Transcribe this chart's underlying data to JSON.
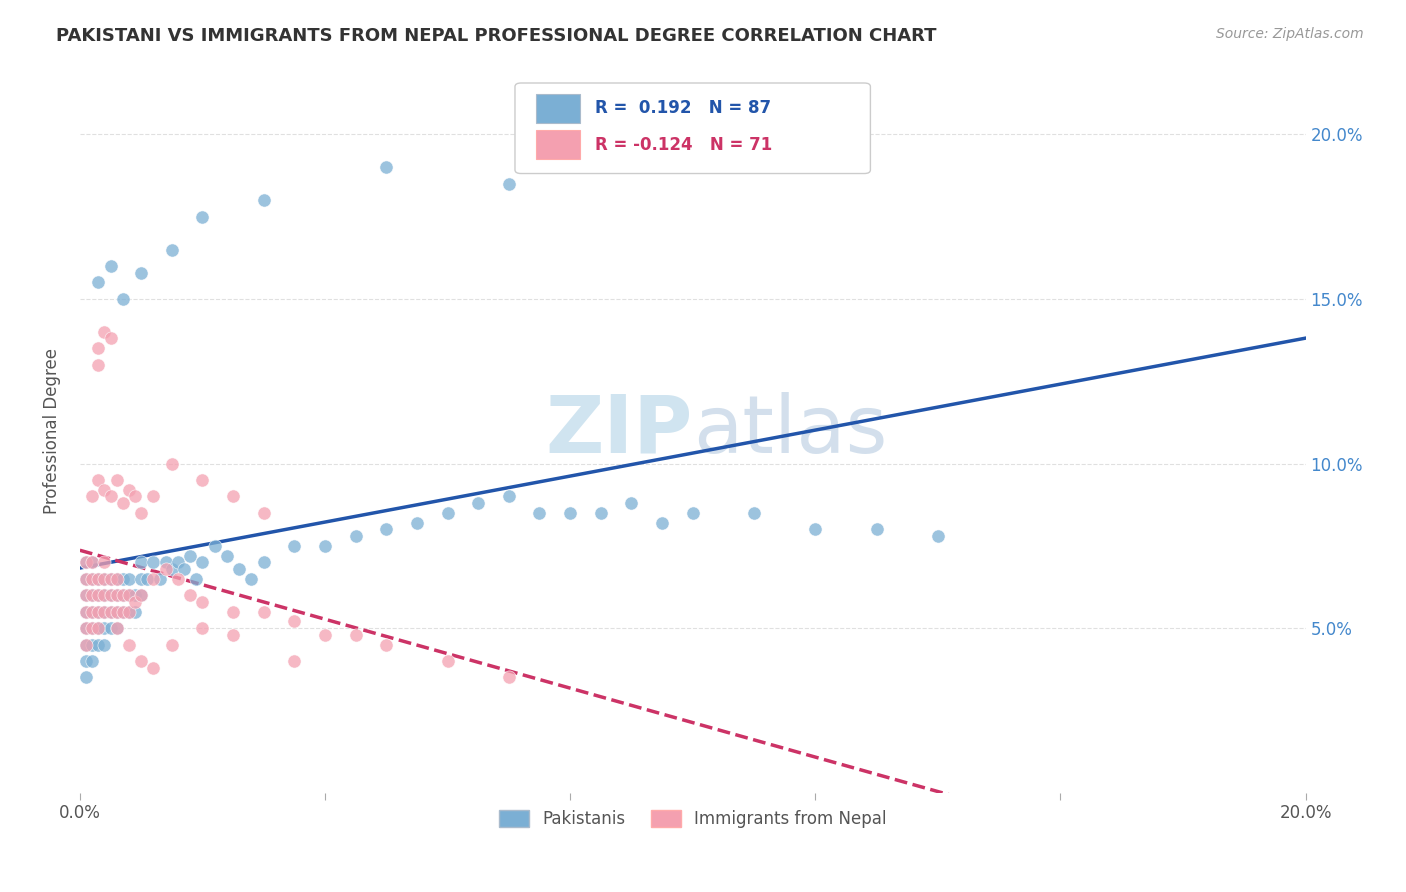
{
  "title": "PAKISTANI VS IMMIGRANTS FROM NEPAL PROFESSIONAL DEGREE CORRELATION CHART",
  "source": "Source: ZipAtlas.com",
  "ylabel": "Professional Degree",
  "xlim": [
    0.0,
    0.2
  ],
  "ylim": [
    0.0,
    0.22
  ],
  "yticks": [
    0.05,
    0.1,
    0.15,
    0.2
  ],
  "right_ytick_labels": [
    "5.0%",
    "10.0%",
    "15.0%",
    "20.0%"
  ],
  "blue_color": "#7bafd4",
  "pink_color": "#f4a0b0",
  "blue_line_color": "#2255aa",
  "pink_line_color": "#cc3366",
  "watermark_color": "#d0e4f0",
  "grid_color": "#e0e0e0",
  "pakistanis_x": [
    0.001,
    0.001,
    0.001,
    0.001,
    0.001,
    0.001,
    0.001,
    0.001,
    0.002,
    0.002,
    0.002,
    0.002,
    0.002,
    0.002,
    0.002,
    0.003,
    0.003,
    0.003,
    0.003,
    0.003,
    0.004,
    0.004,
    0.004,
    0.004,
    0.004,
    0.005,
    0.005,
    0.005,
    0.005,
    0.006,
    0.006,
    0.006,
    0.006,
    0.007,
    0.007,
    0.007,
    0.008,
    0.008,
    0.008,
    0.009,
    0.009,
    0.01,
    0.01,
    0.01,
    0.011,
    0.012,
    0.013,
    0.014,
    0.015,
    0.016,
    0.017,
    0.018,
    0.019,
    0.02,
    0.022,
    0.024,
    0.026,
    0.028,
    0.03,
    0.035,
    0.04,
    0.045,
    0.05,
    0.055,
    0.06,
    0.065,
    0.07,
    0.075,
    0.08,
    0.085,
    0.09,
    0.095,
    0.1,
    0.11,
    0.12,
    0.13,
    0.14,
    0.003,
    0.005,
    0.007,
    0.01,
    0.015,
    0.02,
    0.03,
    0.05,
    0.07,
    0.1
  ],
  "pakistanis_y": [
    0.055,
    0.06,
    0.065,
    0.05,
    0.045,
    0.04,
    0.07,
    0.035,
    0.055,
    0.06,
    0.045,
    0.05,
    0.065,
    0.04,
    0.07,
    0.05,
    0.055,
    0.06,
    0.045,
    0.065,
    0.055,
    0.06,
    0.05,
    0.065,
    0.045,
    0.06,
    0.055,
    0.065,
    0.05,
    0.055,
    0.06,
    0.065,
    0.05,
    0.06,
    0.055,
    0.065,
    0.06,
    0.055,
    0.065,
    0.06,
    0.055,
    0.065,
    0.06,
    0.07,
    0.065,
    0.07,
    0.065,
    0.07,
    0.068,
    0.07,
    0.068,
    0.072,
    0.065,
    0.07,
    0.075,
    0.072,
    0.068,
    0.065,
    0.07,
    0.075,
    0.075,
    0.078,
    0.08,
    0.082,
    0.085,
    0.088,
    0.09,
    0.085,
    0.085,
    0.085,
    0.088,
    0.082,
    0.085,
    0.085,
    0.08,
    0.08,
    0.078,
    0.155,
    0.16,
    0.15,
    0.158,
    0.165,
    0.175,
    0.18,
    0.19,
    0.185,
    0.195
  ],
  "nepal_x": [
    0.001,
    0.001,
    0.001,
    0.001,
    0.001,
    0.001,
    0.002,
    0.002,
    0.002,
    0.002,
    0.002,
    0.003,
    0.003,
    0.003,
    0.003,
    0.004,
    0.004,
    0.004,
    0.004,
    0.005,
    0.005,
    0.005,
    0.006,
    0.006,
    0.006,
    0.007,
    0.007,
    0.008,
    0.008,
    0.009,
    0.01,
    0.012,
    0.014,
    0.016,
    0.018,
    0.02,
    0.025,
    0.03,
    0.035,
    0.04,
    0.045,
    0.05,
    0.06,
    0.07,
    0.002,
    0.003,
    0.004,
    0.005,
    0.006,
    0.007,
    0.008,
    0.009,
    0.01,
    0.012,
    0.015,
    0.02,
    0.025,
    0.03,
    0.003,
    0.004,
    0.005,
    0.003,
    0.006,
    0.008,
    0.01,
    0.012,
    0.015,
    0.02,
    0.025,
    0.035
  ],
  "nepal_y": [
    0.055,
    0.06,
    0.065,
    0.05,
    0.07,
    0.045,
    0.055,
    0.06,
    0.065,
    0.07,
    0.05,
    0.06,
    0.055,
    0.065,
    0.05,
    0.06,
    0.055,
    0.065,
    0.07,
    0.06,
    0.065,
    0.055,
    0.06,
    0.055,
    0.065,
    0.06,
    0.055,
    0.06,
    0.055,
    0.058,
    0.06,
    0.065,
    0.068,
    0.065,
    0.06,
    0.058,
    0.055,
    0.055,
    0.052,
    0.048,
    0.048,
    0.045,
    0.04,
    0.035,
    0.09,
    0.095,
    0.092,
    0.09,
    0.095,
    0.088,
    0.092,
    0.09,
    0.085,
    0.09,
    0.1,
    0.095,
    0.09,
    0.085,
    0.135,
    0.14,
    0.138,
    0.13,
    0.05,
    0.045,
    0.04,
    0.038,
    0.045,
    0.05,
    0.048,
    0.04
  ]
}
